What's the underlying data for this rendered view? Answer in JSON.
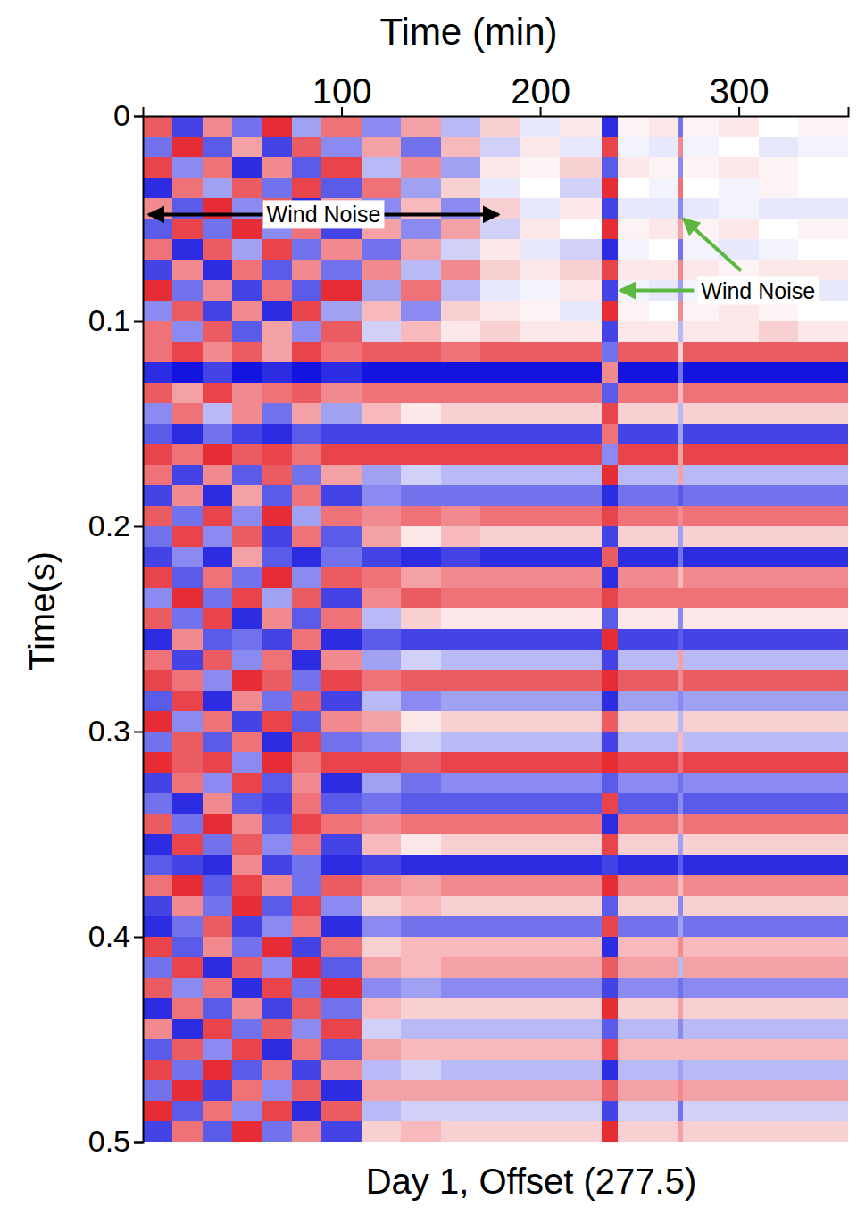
{
  "chart_data": {
    "type": "heatmap",
    "xlabel": "Time (min)",
    "ylabel": "Time(s)",
    "caption": "Day 1, Offset (277.5)",
    "xlim": [
      0,
      355
    ],
    "xticks": [
      100,
      200,
      300
    ],
    "ylim": [
      0,
      0.5
    ],
    "yticks": [
      0,
      0.1,
      0.2,
      0.3,
      0.4,
      0.5
    ],
    "zlim": [
      -1,
      1
    ],
    "x_edges": [
      0,
      15,
      30,
      45,
      60,
      75,
      90,
      110,
      130,
      150,
      170,
      190,
      210,
      231,
      239,
      255,
      269,
      272,
      290,
      310,
      330,
      355
    ],
    "y_edges": [
      0,
      0.01,
      0.02,
      0.03,
      0.04,
      0.05,
      0.06,
      0.07,
      0.08,
      0.09,
      0.1,
      0.11,
      0.12,
      0.13,
      0.14,
      0.15,
      0.16,
      0.17,
      0.18,
      0.19,
      0.2,
      0.21,
      0.22,
      0.23,
      0.24,
      0.25,
      0.26,
      0.27,
      0.28,
      0.29,
      0.3,
      0.31,
      0.32,
      0.33,
      0.34,
      0.35,
      0.36,
      0.37,
      0.38,
      0.39,
      0.4,
      0.41,
      0.42,
      0.43,
      0.44,
      0.45,
      0.46,
      0.47,
      0.48,
      0.49,
      0.5
    ],
    "z": [
      [
        0.7,
        -0.8,
        0.5,
        -0.6,
        0.9,
        -0.4,
        0.6,
        -0.5,
        0.4,
        -0.3,
        0.2,
        -0.1,
        0.1,
        -0.9,
        0.05,
        0.1,
        -0.6,
        0.05,
        0.1,
        0,
        0.05
      ],
      [
        -0.6,
        0.9,
        -0.7,
        0.4,
        -0.8,
        0.7,
        -0.5,
        0.4,
        -0.6,
        0.3,
        -0.2,
        0.1,
        -0.1,
        0.8,
        -0.05,
        -0.1,
        0.5,
        -0.05,
        0,
        -0.1,
        -0.05
      ],
      [
        0.8,
        -0.5,
        0.6,
        -0.9,
        0.5,
        -0.7,
        0.8,
        -0.3,
        0.5,
        -0.4,
        0.1,
        0.05,
        0.2,
        -0.7,
        0.1,
        0.05,
        -0.5,
        0.05,
        0.1,
        0.05,
        0
      ],
      [
        -0.9,
        0.6,
        -0.4,
        0.7,
        -0.6,
        0.8,
        -0.7,
        0.6,
        -0.4,
        0.2,
        -0.1,
        0,
        -0.2,
        0.9,
        0,
        -0.05,
        0.6,
        0,
        -0.05,
        0.05,
        0
      ],
      [
        0.5,
        -0.7,
        0.9,
        -0.5,
        0.7,
        -0.9,
        0.4,
        -0.5,
        0.3,
        -0.5,
        0.2,
        -0.1,
        0.1,
        -0.8,
        -0.1,
        -0.1,
        -0.5,
        -0.1,
        -0.05,
        -0.1,
        -0.1
      ],
      [
        -0.7,
        0.8,
        -0.6,
        0.9,
        -0.5,
        0.6,
        -0.8,
        0.4,
        -0.5,
        0.4,
        -0.2,
        0.1,
        0,
        0.9,
        0.05,
        0.1,
        0.4,
        0.05,
        0.1,
        0,
        0.05
      ],
      [
        0.6,
        -0.9,
        0.7,
        -0.4,
        0.8,
        -0.6,
        0.5,
        -0.6,
        0.4,
        -0.2,
        0.1,
        -0.1,
        -0.2,
        -0.9,
        -0.05,
        0,
        -0.6,
        -0.05,
        -0.1,
        -0.05,
        0
      ],
      [
        -0.8,
        0.5,
        -0.9,
        0.6,
        -0.7,
        0.5,
        -0.6,
        0.5,
        -0.3,
        0.5,
        0.2,
        0.1,
        0.2,
        0.8,
        0.1,
        0.1,
        0.5,
        0.1,
        0.05,
        0.1,
        0.1
      ],
      [
        0.9,
        -0.6,
        0.5,
        -0.8,
        0.6,
        -0.7,
        0.9,
        -0.4,
        0.6,
        -0.3,
        -0.1,
        -0.05,
        0.1,
        -0.8,
        -0.05,
        -0.1,
        -0.4,
        -0.05,
        0,
        -0.05,
        -0.1
      ],
      [
        -0.5,
        0.7,
        -0.8,
        0.5,
        -0.9,
        0.8,
        -0.4,
        0.3,
        -0.5,
        0.2,
        0.1,
        0.05,
        -0.1,
        0.9,
        0.05,
        0,
        0.5,
        0.05,
        0.1,
        0.05,
        0
      ],
      [
        0.6,
        -0.5,
        0.7,
        -0.7,
        0.4,
        -0.5,
        0.7,
        -0.2,
        0.3,
        0.1,
        0.2,
        0.1,
        0.1,
        -0.8,
        0.1,
        0.1,
        -0.3,
        0.1,
        0.1,
        0.2,
        0.1
      ],
      [
        0.6,
        0.8,
        0.5,
        0.7,
        0.4,
        0.8,
        0.6,
        0.7,
        0.7,
        0.6,
        0.7,
        0.7,
        0.7,
        -0.6,
        0.7,
        0.7,
        0.2,
        0.7,
        0.7,
        0.7,
        0.7
      ],
      [
        -0.9,
        -1,
        -0.8,
        -1,
        -0.9,
        -1,
        -0.9,
        -1,
        -1,
        -1,
        -1,
        -1,
        -1,
        0.5,
        -1,
        -1,
        -0.6,
        -1,
        -1,
        -1,
        -1
      ],
      [
        0.7,
        0.4,
        0.8,
        0.5,
        0.6,
        0.7,
        0.5,
        0.6,
        0.6,
        0.6,
        0.6,
        0.6,
        0.6,
        -0.7,
        0.6,
        0.6,
        0.3,
        0.6,
        0.6,
        0.6,
        0.6
      ],
      [
        -0.5,
        0.6,
        -0.3,
        0.5,
        -0.6,
        0.4,
        -0.4,
        0.3,
        0.1,
        0.2,
        0.2,
        0.2,
        0.2,
        0.8,
        0.2,
        0.2,
        -0.3,
        0.2,
        0.2,
        0.2,
        0.2
      ],
      [
        -0.7,
        -0.9,
        -0.6,
        -0.8,
        -0.9,
        -0.7,
        -0.8,
        -0.8,
        -0.8,
        -0.8,
        -0.8,
        -0.8,
        -0.8,
        0.6,
        -0.8,
        -0.8,
        -0.4,
        -0.8,
        -0.8,
        -0.8,
        -0.8
      ],
      [
        0.8,
        0.6,
        0.9,
        0.7,
        0.8,
        0.6,
        0.8,
        0.8,
        0.8,
        0.8,
        0.8,
        0.8,
        0.8,
        -0.5,
        0.8,
        0.8,
        0.4,
        0.8,
        0.8,
        0.8,
        0.8
      ],
      [
        0.6,
        -0.8,
        0.5,
        -0.7,
        0.7,
        -0.6,
        0.4,
        -0.4,
        -0.2,
        -0.3,
        -0.3,
        -0.3,
        -0.3,
        0.9,
        -0.3,
        -0.3,
        0.4,
        -0.3,
        -0.3,
        -0.3,
        -0.3
      ],
      [
        -0.8,
        0.5,
        -0.9,
        0.4,
        -0.7,
        0.6,
        -0.8,
        -0.5,
        -0.6,
        -0.6,
        -0.6,
        -0.6,
        -0.6,
        -0.9,
        -0.6,
        -0.6,
        -0.7,
        -0.6,
        -0.6,
        -0.6,
        -0.6
      ],
      [
        0.7,
        -0.6,
        0.8,
        -0.5,
        0.9,
        -0.4,
        0.6,
        0.5,
        0.6,
        0.5,
        0.6,
        0.6,
        0.6,
        0.8,
        0.6,
        0.6,
        0.5,
        0.6,
        0.6,
        0.6,
        0.6
      ],
      [
        -0.6,
        0.8,
        -0.5,
        0.7,
        -0.8,
        0.6,
        -0.7,
        0.4,
        0.1,
        0.3,
        0.2,
        0.2,
        0.2,
        -0.8,
        0.2,
        0.2,
        -0.4,
        0.2,
        0.2,
        0.2,
        0.2
      ],
      [
        -0.8,
        -0.5,
        -0.9,
        0.4,
        -0.7,
        -0.9,
        -0.6,
        -0.8,
        -0.9,
        -0.8,
        -0.9,
        -0.9,
        -0.9,
        0.7,
        -0.9,
        -0.9,
        -0.6,
        -0.9,
        -0.9,
        -0.9,
        -0.9
      ],
      [
        0.8,
        -0.7,
        0.6,
        -0.6,
        0.9,
        -0.5,
        0.7,
        0.6,
        0.4,
        0.5,
        0.5,
        0.5,
        0.5,
        -0.9,
        0.5,
        0.5,
        0.3,
        0.5,
        0.5,
        0.5,
        0.5
      ],
      [
        -0.5,
        0.9,
        -0.6,
        0.8,
        -0.4,
        0.7,
        -0.8,
        0.5,
        0.7,
        0.6,
        0.6,
        0.6,
        0.6,
        0.8,
        0.6,
        0.6,
        0.6,
        0.6,
        0.6,
        0.6,
        0.6
      ],
      [
        0.7,
        -0.6,
        0.8,
        -0.9,
        0.5,
        -0.7,
        0.6,
        -0.3,
        0.2,
        0.1,
        0.1,
        0.1,
        0.1,
        -0.7,
        0.1,
        0.1,
        -0.5,
        0.1,
        0.1,
        0.1,
        0.1
      ],
      [
        -0.9,
        0.5,
        -0.7,
        -0.6,
        -0.8,
        0.6,
        -0.9,
        -0.7,
        -0.8,
        -0.8,
        -0.8,
        -0.8,
        -0.8,
        0.9,
        -0.8,
        -0.8,
        -0.7,
        -0.8,
        -0.8,
        -0.8,
        -0.8
      ],
      [
        0.6,
        -0.8,
        0.7,
        -0.5,
        0.6,
        -0.9,
        0.5,
        -0.4,
        -0.2,
        -0.3,
        -0.3,
        -0.3,
        -0.3,
        -0.8,
        -0.3,
        -0.3,
        0.4,
        -0.3,
        -0.3,
        -0.3,
        -0.3
      ],
      [
        0.8,
        0.6,
        -0.5,
        0.9,
        0.7,
        -0.6,
        0.8,
        0.6,
        0.7,
        0.7,
        0.7,
        0.7,
        0.7,
        0.9,
        0.7,
        0.7,
        0.5,
        0.7,
        0.7,
        0.7,
        0.7
      ],
      [
        -0.7,
        0.8,
        -0.9,
        0.5,
        -0.6,
        0.7,
        -0.8,
        -0.3,
        -0.5,
        -0.4,
        -0.4,
        -0.4,
        -0.4,
        -0.9,
        -0.4,
        -0.4,
        -0.5,
        -0.4,
        -0.4,
        -0.4,
        -0.4
      ],
      [
        0.9,
        -0.5,
        0.6,
        -0.8,
        0.8,
        -0.7,
        0.5,
        0.4,
        0.1,
        0.2,
        0.2,
        0.2,
        0.2,
        0.7,
        0.2,
        0.2,
        -0.3,
        0.2,
        0.2,
        0.2,
        0.2
      ],
      [
        -0.6,
        0.7,
        -0.7,
        0.6,
        -0.9,
        0.8,
        -0.6,
        -0.5,
        -0.2,
        -0.3,
        -0.3,
        -0.3,
        -0.3,
        -0.8,
        -0.3,
        -0.3,
        0.3,
        -0.3,
        -0.3,
        -0.3,
        -0.3
      ],
      [
        0.9,
        0.7,
        0.8,
        -0.5,
        0.9,
        0.6,
        0.8,
        0.8,
        0.7,
        0.8,
        0.8,
        0.8,
        0.8,
        0.9,
        0.8,
        0.8,
        0.6,
        0.8,
        0.8,
        0.8,
        0.8
      ],
      [
        -0.8,
        0.6,
        -0.5,
        0.8,
        -0.7,
        0.5,
        -0.9,
        -0.4,
        -0.6,
        -0.5,
        -0.5,
        -0.5,
        -0.5,
        -0.7,
        -0.5,
        -0.5,
        -0.6,
        -0.5,
        -0.5,
        -0.5,
        -0.5
      ],
      [
        -0.6,
        -0.9,
        0.5,
        -0.7,
        -0.8,
        0.6,
        -0.7,
        -0.6,
        -0.7,
        -0.7,
        -0.7,
        -0.7,
        -0.7,
        0.8,
        -0.7,
        -0.7,
        -0.5,
        -0.7,
        -0.7,
        -0.7,
        -0.7
      ],
      [
        0.7,
        -0.6,
        0.9,
        0.5,
        -0.7,
        0.8,
        0.6,
        0.5,
        0.6,
        0.6,
        0.6,
        0.6,
        0.6,
        -0.9,
        0.6,
        0.6,
        0.4,
        0.6,
        0.6,
        0.6,
        0.6
      ],
      [
        -0.9,
        0.8,
        -0.6,
        0.7,
        -0.5,
        0.6,
        -0.8,
        0.3,
        0.1,
        0.2,
        0.2,
        0.2,
        0.2,
        0.8,
        0.2,
        0.2,
        -0.4,
        0.2,
        0.2,
        0.2,
        0.2
      ],
      [
        -0.7,
        -0.8,
        -0.9,
        0.5,
        -0.8,
        -0.6,
        -0.9,
        -0.8,
        -0.9,
        -0.9,
        -0.9,
        -0.9,
        -0.9,
        -0.8,
        -0.9,
        -0.9,
        -0.7,
        -0.9,
        -0.9,
        -0.9,
        -0.9
      ],
      [
        0.6,
        0.9,
        -0.7,
        0.8,
        0.5,
        -0.6,
        0.7,
        0.5,
        0.4,
        0.5,
        0.5,
        0.5,
        0.5,
        0.9,
        0.5,
        0.5,
        0.3,
        0.5,
        0.5,
        0.5,
        0.5
      ],
      [
        -0.8,
        0.5,
        -0.6,
        0.9,
        -0.7,
        0.8,
        -0.5,
        0.2,
        0.3,
        0.2,
        0.2,
        0.2,
        0.2,
        -0.7,
        0.2,
        0.2,
        -0.5,
        0.2,
        0.2,
        0.2,
        0.2
      ],
      [
        -0.9,
        -0.6,
        0.7,
        -0.8,
        -0.5,
        0.6,
        -0.9,
        -0.5,
        -0.6,
        -0.6,
        -0.6,
        -0.6,
        -0.6,
        0.8,
        -0.6,
        -0.6,
        -0.4,
        -0.6,
        -0.6,
        -0.6,
        -0.6
      ],
      [
        0.8,
        -0.7,
        0.5,
        -0.6,
        0.9,
        -0.8,
        0.6,
        0.2,
        0.3,
        0.3,
        0.3,
        0.3,
        0.3,
        -0.9,
        0.3,
        0.3,
        0.5,
        0.3,
        0.3,
        0.3,
        0.3
      ],
      [
        -0.6,
        0.8,
        -0.9,
        0.7,
        -0.5,
        0.9,
        -0.7,
        0.4,
        0.3,
        0.4,
        0.4,
        0.4,
        0.4,
        0.7,
        0.4,
        0.4,
        -0.3,
        0.4,
        0.4,
        0.4,
        0.4
      ],
      [
        0.7,
        -0.5,
        0.6,
        -0.9,
        0.8,
        -0.6,
        0.9,
        -0.5,
        -0.4,
        -0.5,
        -0.5,
        -0.5,
        -0.5,
        -0.8,
        -0.5,
        -0.5,
        -0.6,
        -0.5,
        -0.5,
        -0.5,
        -0.5
      ],
      [
        -0.9,
        0.6,
        -0.7,
        0.5,
        -0.8,
        0.7,
        -0.6,
        0.3,
        0.2,
        0.2,
        0.2,
        0.2,
        0.2,
        0.9,
        0.2,
        0.2,
        0.4,
        0.2,
        0.2,
        0.2,
        0.2
      ],
      [
        0.5,
        -0.9,
        0.8,
        -0.6,
        0.7,
        -0.5,
        0.8,
        -0.2,
        -0.3,
        -0.3,
        -0.3,
        -0.3,
        -0.3,
        -0.7,
        -0.3,
        -0.3,
        -0.5,
        -0.3,
        -0.3,
        -0.3,
        -0.3
      ],
      [
        -0.7,
        0.7,
        -0.5,
        0.8,
        -0.9,
        0.6,
        -0.7,
        0.4,
        0.3,
        0.3,
        0.3,
        0.3,
        0.3,
        0.8,
        0.3,
        0.3,
        0.3,
        0.3,
        0.3,
        0.3,
        0.3
      ],
      [
        0.8,
        -0.6,
        0.9,
        -0.7,
        0.6,
        -0.8,
        0.5,
        -0.3,
        -0.2,
        -0.3,
        -0.3,
        -0.3,
        -0.3,
        -0.9,
        -0.3,
        -0.3,
        -0.4,
        -0.3,
        -0.3,
        -0.3,
        -0.3
      ],
      [
        -0.6,
        0.9,
        -0.8,
        0.6,
        -0.5,
        0.7,
        -0.9,
        0.4,
        0.4,
        0.4,
        0.4,
        0.4,
        0.4,
        0.7,
        0.4,
        0.4,
        0.5,
        0.4,
        0.4,
        0.4,
        0.4
      ],
      [
        0.9,
        -0.7,
        0.6,
        -0.5,
        0.8,
        -0.9,
        0.7,
        -0.3,
        -0.2,
        -0.2,
        -0.2,
        -0.2,
        -0.2,
        -0.8,
        -0.2,
        -0.2,
        -0.6,
        -0.2,
        -0.2,
        -0.2,
        -0.2
      ],
      [
        -0.8,
        0.6,
        -0.7,
        0.9,
        -0.6,
        0.5,
        -0.8,
        0.2,
        0.3,
        0.2,
        0.2,
        0.2,
        0.2,
        0.9,
        0.2,
        0.2,
        0.4,
        0.2,
        0.2,
        0.2,
        0.2
      ]
    ],
    "annotations": [
      {
        "text": "Wind Noise",
        "x": [
          2,
          180
        ],
        "y": 0.048
      },
      {
        "text": "Wind Noise",
        "x": 281,
        "y": 0.085,
        "arrows": [
          [
            240,
            0.085
          ],
          [
            272,
            0.05
          ]
        ]
      }
    ]
  }
}
